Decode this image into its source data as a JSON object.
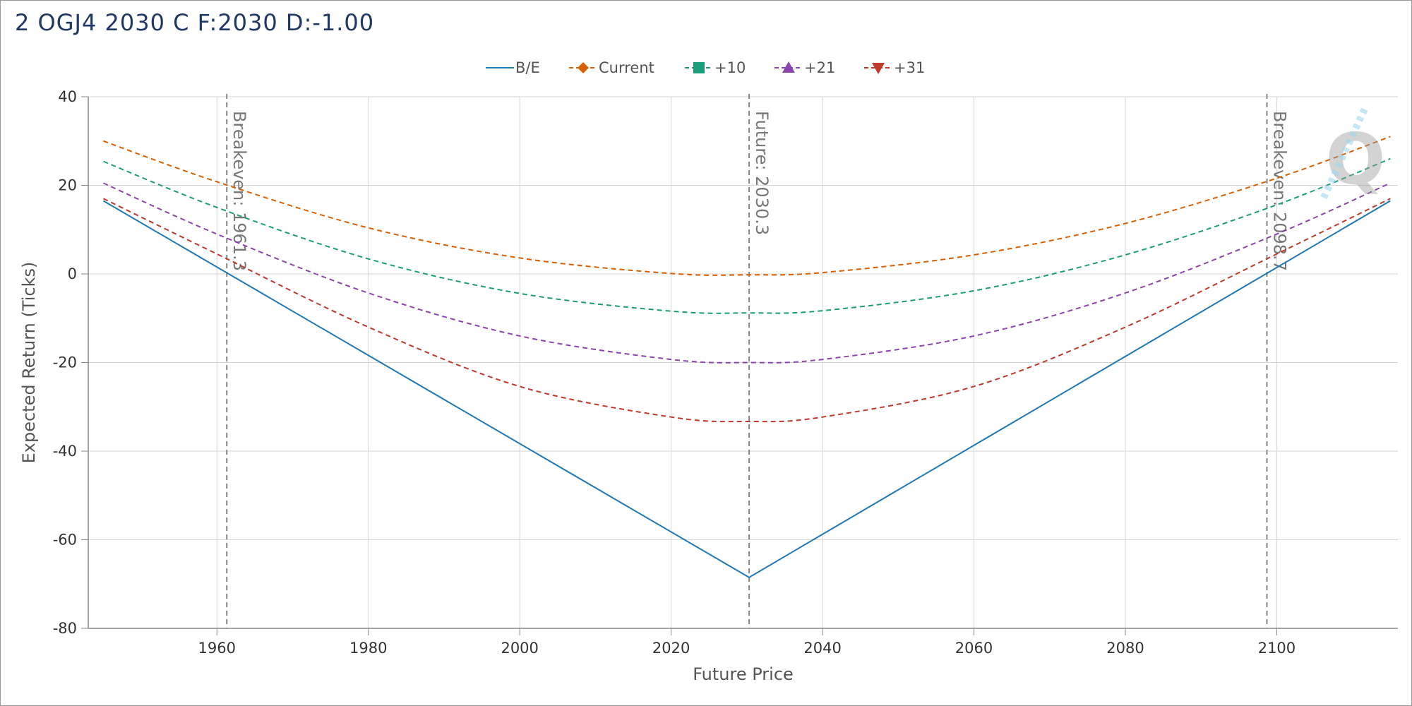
{
  "title": "2 OGJ4 2030 C F:2030 D:-1.00",
  "chart_data": {
    "type": "line",
    "title": "2 OGJ4 2030 C F:2030 D:-1.00",
    "xlabel": "Future Price",
    "ylabel": "Expected Return (Ticks)",
    "xlim": [
      1943,
      2116
    ],
    "ylim": [
      -80,
      40
    ],
    "xticks": [
      1960,
      1980,
      2000,
      2020,
      2040,
      2060,
      2080,
      2100
    ],
    "yticks": [
      40,
      20,
      0,
      -20,
      -40,
      -60,
      -80
    ],
    "grid": true,
    "legend_position": "top-center",
    "series": [
      {
        "name": "B/E",
        "color": "#1f77b4",
        "dash": "solid",
        "marker": "none",
        "x": [
          1945,
          2030.3,
          2115
        ],
        "y": [
          16.5,
          -68.5,
          16.5
        ]
      },
      {
        "name": "Current",
        "color": "#d95f02",
        "dash": "dashed",
        "marker": "diamond",
        "x": [
          1945,
          1960,
          1980,
          2000,
          2020,
          2030.3,
          2040,
          2060,
          2080,
          2100,
          2115
        ],
        "y": [
          30.0,
          20.8,
          10.4,
          3.6,
          0.1,
          -0.2,
          0.3,
          4.3,
          11.4,
          21.6,
          31.0
        ]
      },
      {
        "name": "+10",
        "color": "#1b9e77",
        "dash": "dashed",
        "marker": "square",
        "x": [
          1945,
          1960,
          1980,
          2000,
          2020,
          2030.3,
          2040,
          2060,
          2080,
          2100,
          2115
        ],
        "y": [
          25.4,
          15.0,
          3.4,
          -4.4,
          -8.4,
          -8.8,
          -8.3,
          -3.8,
          4.3,
          15.6,
          26.0
        ]
      },
      {
        "name": "+21",
        "color": "#8e44ad",
        "dash": "dashed",
        "marker": "triangle-up",
        "x": [
          1945,
          1960,
          1980,
          2000,
          2020,
          2030.3,
          2040,
          2060,
          2080,
          2100,
          2115
        ],
        "y": [
          20.5,
          9.0,
          -4.3,
          -14.0,
          -19.3,
          -20.0,
          -19.3,
          -14.0,
          -4.3,
          9.0,
          20.5
        ]
      },
      {
        "name": "+31",
        "color": "#c0392b",
        "dash": "dashed",
        "marker": "triangle-down",
        "x": [
          1945,
          1960,
          1980,
          2000,
          2020,
          2030.3,
          2040,
          2060,
          2080,
          2100,
          2115
        ],
        "y": [
          17.0,
          4.5,
          -12.0,
          -25.4,
          -32.3,
          -33.3,
          -32.3,
          -25.4,
          -12.0,
          4.5,
          17.0
        ]
      }
    ],
    "vertical_lines": [
      {
        "x": 1961.3,
        "label": "Breakeven: 1961.3"
      },
      {
        "x": 2030.3,
        "label": "Future: 2030.3"
      },
      {
        "x": 2098.7,
        "label": "Breakeven: 2098.7"
      }
    ]
  }
}
